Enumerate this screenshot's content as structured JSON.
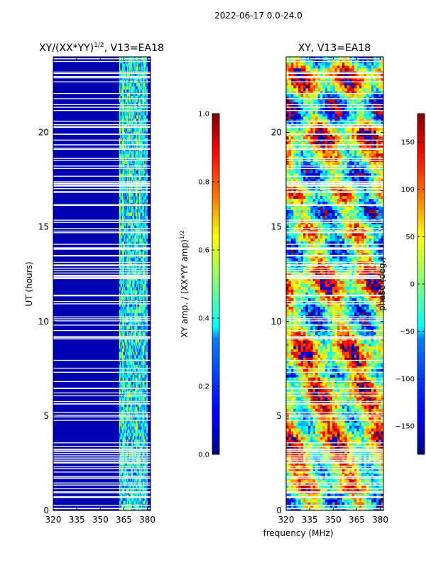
{
  "figure": {
    "suptitle": "2022-06-17 0.0-24.0",
    "xlabel_shared": "frequency (MHz)",
    "ylabel_shared": "UT (hours)"
  },
  "chart_data": [
    {
      "type": "heatmap",
      "title": "XY/(XX*YY)",
      "title_sup": "1/2",
      "title_suffix": ", V13=EA18",
      "x": [
        320,
        335,
        350,
        365,
        380
      ],
      "x_ticks": [
        "320",
        "335",
        "350",
        "365",
        "380"
      ],
      "y_ticks": [
        "0",
        "5",
        "10",
        "15",
        "20"
      ],
      "xlim": [
        320,
        382
      ],
      "ylim": [
        0,
        24
      ],
      "colorbar": {
        "label": "XY amp. / (XX*YY amp)",
        "label_sup": "1/2",
        "range": [
          0.0,
          1.0
        ],
        "ticks": [
          "0.0",
          "0.2",
          "0.4",
          "0.6",
          "0.8",
          "1.0"
        ],
        "colormap": "jet"
      },
      "description_values": {
        "background_level": 0.05,
        "active_band_mhz": [
          362,
          380
        ],
        "active_band_level_range": [
          0.2,
          0.65
        ]
      }
    },
    {
      "type": "heatmap",
      "title": "XY, V13=EA18",
      "x": [
        320,
        335,
        350,
        365,
        380
      ],
      "x_ticks": [
        "320",
        "335",
        "350",
        "365",
        "380"
      ],
      "y_ticks": [
        "0",
        "5",
        "10",
        "15",
        "20"
      ],
      "xlim": [
        320,
        382
      ],
      "ylim": [
        0,
        24
      ],
      "colorbar": {
        "label": "phase (deg.)",
        "range": [
          -180,
          180
        ],
        "ticks": [
          "150",
          "100",
          "50",
          "0",
          "−50",
          "−100",
          "−150"
        ],
        "colormap": "jet"
      }
    }
  ],
  "colors": {
    "jet_low": "#00007f",
    "jet_mid": "#7fff7f",
    "jet_high": "#7f0000"
  }
}
